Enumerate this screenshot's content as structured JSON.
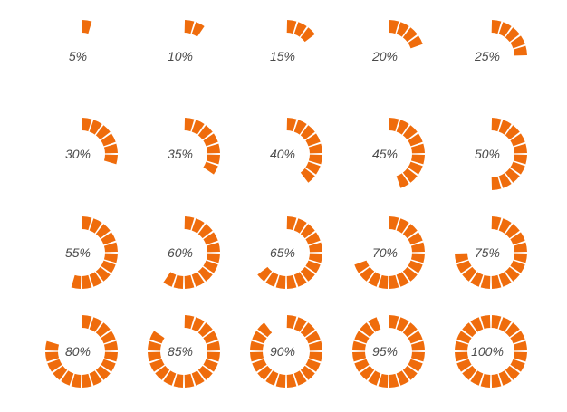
{
  "colors": {
    "segment": "#ef6c0c",
    "label": "#4a4a4a",
    "background": "#ffffff"
  },
  "segments_total": 20,
  "indicators": [
    {
      "label": "5%",
      "value": 5
    },
    {
      "label": "10%",
      "value": 10
    },
    {
      "label": "15%",
      "value": 15
    },
    {
      "label": "20%",
      "value": 20
    },
    {
      "label": "25%",
      "value": 25
    },
    {
      "label": "30%",
      "value": 30
    },
    {
      "label": "35%",
      "value": 35
    },
    {
      "label": "40%",
      "value": 40
    },
    {
      "label": "45%",
      "value": 45
    },
    {
      "label": "50%",
      "value": 50
    },
    {
      "label": "55%",
      "value": 55
    },
    {
      "label": "60%",
      "value": 60
    },
    {
      "label": "65%",
      "value": 65
    },
    {
      "label": "70%",
      "value": 70
    },
    {
      "label": "75%",
      "value": 75
    },
    {
      "label": "80%",
      "value": 80
    },
    {
      "label": "85%",
      "value": 85
    },
    {
      "label": "90%",
      "value": 90
    },
    {
      "label": "95%",
      "value": 95
    },
    {
      "label": "100%",
      "value": 100
    }
  ]
}
